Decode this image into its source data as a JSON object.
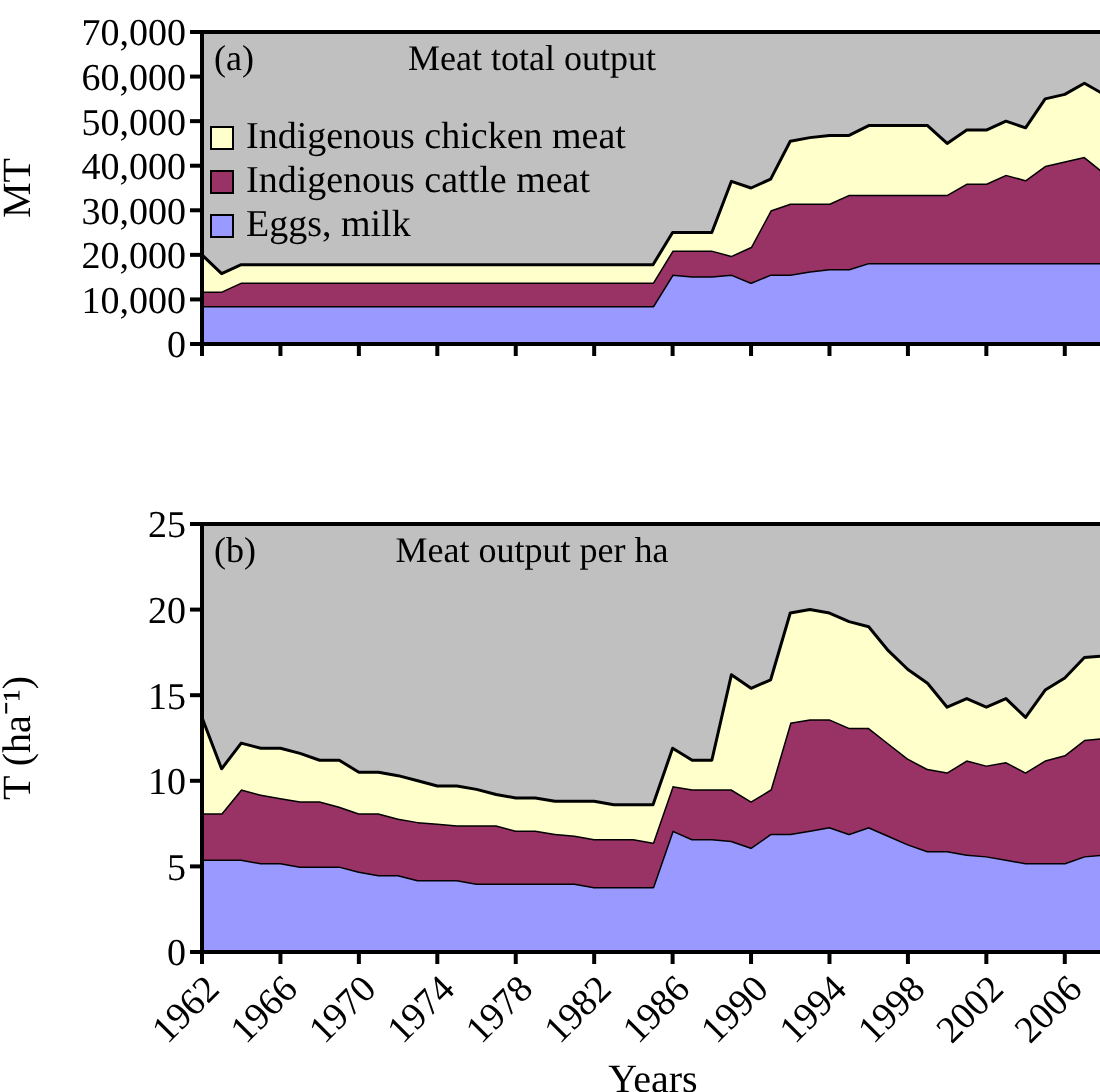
{
  "chart_data": [
    {
      "type": "area",
      "stacked": true,
      "title": "Meat total output",
      "annotations": [
        "(a)"
      ],
      "ylabel": "MT",
      "legend": "top left",
      "grid": false,
      "tick_labels": "y",
      "x": [
        1962,
        1963,
        1964,
        1965,
        1966,
        1967,
        1968,
        1969,
        1970,
        1971,
        1972,
        1973,
        1974,
        1975,
        1976,
        1977,
        1978,
        1979,
        1980,
        1981,
        1982,
        1983,
        1984,
        1985,
        1986,
        1987,
        1988,
        1989,
        1990,
        1991,
        1992,
        1993,
        1994,
        1995,
        1996,
        1997,
        1998,
        1999,
        2000,
        2001,
        2002,
        2003,
        2004,
        2005,
        2006,
        2007,
        2008
      ],
      "xlim": [
        1962,
        2008
      ],
      "xticks": [
        {
          "value": 1962,
          "label": null
        },
        {
          "value": 1966,
          "label": null
        },
        {
          "value": 1970,
          "label": null
        },
        {
          "value": 1974,
          "label": null
        },
        {
          "value": 1978,
          "label": null
        },
        {
          "value": 1982,
          "label": null
        },
        {
          "value": 1986,
          "label": null
        },
        {
          "value": 1990,
          "label": null
        },
        {
          "value": 1994,
          "label": null
        },
        {
          "value": 1998,
          "label": null
        },
        {
          "value": 2002,
          "label": null
        },
        {
          "value": 2006,
          "label": null
        }
      ],
      "ylim": [
        0,
        70000
      ],
      "yticks": [
        {
          "value": 0,
          "label": "0"
        },
        {
          "value": 10000,
          "label": "10,000"
        },
        {
          "value": 20000,
          "label": "20,000"
        },
        {
          "value": 30000,
          "label": "30,000"
        },
        {
          "value": 40000,
          "label": "40,000"
        },
        {
          "value": 50000,
          "label": "50,000"
        },
        {
          "value": 60000,
          "label": "60,000"
        },
        {
          "value": 70000,
          "label": "70,000"
        }
      ],
      "series": [
        {
          "name": "Eggs, milk",
          "color": "#9999ff",
          "values": [
            8500,
            8500,
            8500,
            8500,
            8500,
            8500,
            8500,
            8500,
            8500,
            8500,
            8500,
            8500,
            8500,
            8500,
            8500,
            8500,
            8500,
            8500,
            8500,
            8500,
            8500,
            8500,
            8500,
            8500,
            15600,
            15200,
            15200,
            15600,
            13800,
            15600,
            15600,
            16300,
            16800,
            16800,
            18200,
            18200,
            18200,
            18200,
            18200,
            18200,
            18200,
            18200,
            18200,
            18200,
            18200,
            18200,
            18200
          ]
        },
        {
          "name": "Indigenous cattle meat",
          "color": "#993366",
          "values": [
            3300,
            3300,
            5300,
            5300,
            5300,
            5300,
            5300,
            5300,
            5300,
            5300,
            5300,
            5300,
            5300,
            5300,
            5300,
            5300,
            5300,
            5300,
            5300,
            5300,
            5300,
            5300,
            5300,
            5300,
            5400,
            5800,
            5800,
            4200,
            8000,
            14400,
            15900,
            15200,
            14700,
            16700,
            15300,
            15300,
            15300,
            15300,
            15300,
            17800,
            17800,
            19800,
            18600,
            21800,
            22800,
            23800,
            20300
          ]
        },
        {
          "name": "Indigenous chicken meat",
          "color": "#ffffcc",
          "values": [
            8200,
            4000,
            4000,
            4000,
            4000,
            4000,
            4000,
            4000,
            4000,
            4000,
            4000,
            4000,
            4000,
            4000,
            4000,
            4000,
            4000,
            4000,
            4000,
            4000,
            4000,
            4000,
            4000,
            4000,
            4000,
            4000,
            4000,
            16700,
            13200,
            7000,
            14000,
            14800,
            15300,
            13300,
            15500,
            15500,
            15500,
            15500,
            11500,
            12000,
            12000,
            12000,
            11700,
            15000,
            15000,
            16500,
            17500
          ]
        }
      ]
    },
    {
      "type": "area",
      "stacked": true,
      "title": "Meat output per ha",
      "annotations": [
        "(b)"
      ],
      "ylabel": "T (ha⁻¹)",
      "xlabel": "Years",
      "legend": false,
      "grid": false,
      "x": [
        1962,
        1963,
        1964,
        1965,
        1966,
        1967,
        1968,
        1969,
        1970,
        1971,
        1972,
        1973,
        1974,
        1975,
        1976,
        1977,
        1978,
        1979,
        1980,
        1981,
        1982,
        1983,
        1984,
        1985,
        1986,
        1987,
        1988,
        1989,
        1990,
        1991,
        1992,
        1993,
        1994,
        1995,
        1996,
        1997,
        1998,
        1999,
        2000,
        2001,
        2002,
        2003,
        2004,
        2005,
        2006,
        2007,
        2008
      ],
      "xlim": [
        1962,
        2008
      ],
      "xticks": [
        1962,
        1966,
        1970,
        1974,
        1978,
        1982,
        1986,
        1990,
        1994,
        1998,
        2002,
        2006
      ],
      "ylim": [
        0,
        25
      ],
      "yticks": [
        0,
        5,
        10,
        15,
        20,
        25
      ],
      "series": [
        {
          "color": "#9999ff",
          "values": [
            5.4,
            5.4,
            5.4,
            5.2,
            5.2,
            5.0,
            5.0,
            5.0,
            4.7,
            4.5,
            4.5,
            4.2,
            4.2,
            4.2,
            4.0,
            4.0,
            4.0,
            4.0,
            4.0,
            4.0,
            3.8,
            3.8,
            3.8,
            3.8,
            7.1,
            6.6,
            6.6,
            6.5,
            6.1,
            6.9,
            6.9,
            7.1,
            7.3,
            6.9,
            7.3,
            6.8,
            6.3,
            5.9,
            5.9,
            5.7,
            5.6,
            5.4,
            5.2,
            5.2,
            5.2,
            5.6,
            5.7
          ]
        },
        {
          "color": "#993366",
          "values": [
            2.7,
            2.7,
            4.1,
            4.0,
            3.8,
            3.8,
            3.8,
            3.5,
            3.4,
            3.6,
            3.3,
            3.4,
            3.3,
            3.2,
            3.4,
            3.4,
            3.1,
            3.1,
            2.9,
            2.8,
            2.8,
            2.8,
            2.8,
            2.6,
            2.6,
            2.9,
            2.9,
            3.0,
            2.7,
            2.6,
            6.5,
            6.5,
            6.3,
            6.2,
            5.8,
            5.4,
            5.0,
            4.8,
            4.6,
            5.5,
            5.3,
            5.7,
            5.3,
            6.0,
            6.3,
            6.8,
            6.8
          ]
        },
        {
          "color": "#ffffcc",
          "values": [
            5.6,
            2.6,
            2.7,
            2.7,
            2.9,
            2.8,
            2.4,
            2.7,
            2.4,
            2.4,
            2.5,
            2.4,
            2.2,
            2.3,
            2.1,
            1.8,
            1.9,
            1.9,
            1.9,
            2.0,
            2.2,
            2.0,
            2.0,
            2.2,
            2.2,
            1.7,
            1.7,
            6.7,
            6.6,
            6.4,
            6.4,
            6.4,
            6.2,
            6.2,
            5.9,
            5.4,
            5.2,
            5.0,
            3.8,
            3.6,
            3.4,
            3.7,
            3.2,
            4.1,
            4.5,
            4.8,
            4.8
          ]
        }
      ]
    }
  ]
}
